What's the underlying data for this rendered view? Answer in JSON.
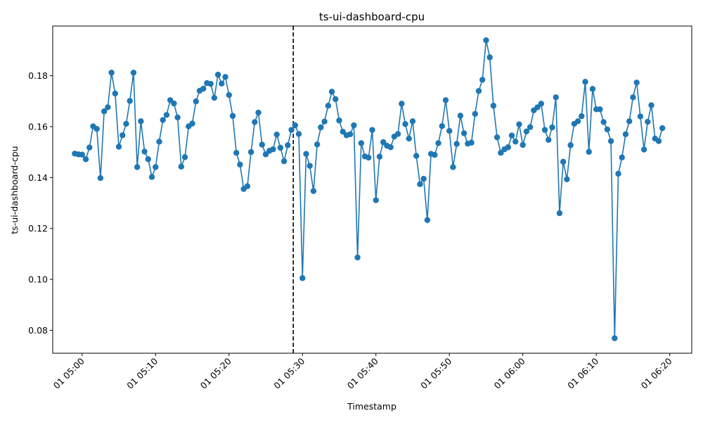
{
  "chart_data": {
    "type": "line",
    "title": "ts-ui-dashboard-cpu",
    "xlabel": "Timestamp",
    "ylabel": "ts-ui-dashboard-cpu",
    "x_start": "01 04:59",
    "x_step_seconds": 30,
    "xlim": [
      "01 04:56",
      "01 06:23"
    ],
    "ylim": [
      0.071,
      0.1995
    ],
    "x_ticks": [
      "01 05:00",
      "01 05:10",
      "01 05:20",
      "01 05:30",
      "01 05:40",
      "01 05:50",
      "01 06:00",
      "01 06:10",
      "01 06:20"
    ],
    "y_ticks": [
      "0.08",
      "0.10",
      "0.12",
      "0.14",
      "0.16",
      "0.18"
    ],
    "series": [
      {
        "color": "#1f77b4",
        "marker": "circle",
        "values": [
          0.1494,
          0.1491,
          0.149,
          0.1472,
          0.1518,
          0.1601,
          0.1591,
          0.1398,
          0.166,
          0.1676,
          0.1812,
          0.173,
          0.1521,
          0.1566,
          0.1611,
          0.1701,
          0.1812,
          0.1441,
          0.1621,
          0.1502,
          0.1472,
          0.1402,
          0.1441,
          0.1541,
          0.1626,
          0.1646,
          0.1704,
          0.1691,
          0.1636,
          0.1443,
          0.148,
          0.1601,
          0.1612,
          0.1699,
          0.1741,
          0.1749,
          0.1771,
          0.1768,
          0.1713,
          0.1804,
          0.1769,
          0.1795,
          0.1724,
          0.1642,
          0.1497,
          0.1451,
          0.1355,
          0.1366,
          0.15,
          0.1618,
          0.1655,
          0.1529,
          0.1491,
          0.1505,
          0.1511,
          0.1569,
          0.1517,
          0.1464,
          0.1527,
          0.1587,
          0.1605,
          0.1571,
          0.1005,
          0.1493,
          0.1446,
          0.1347,
          0.153,
          0.1597,
          0.162,
          0.1682,
          0.1737,
          0.1708,
          0.1624,
          0.158,
          0.1566,
          0.157,
          0.1605,
          0.1086,
          0.1535,
          0.1483,
          0.1478,
          0.1587,
          0.1311,
          0.1482,
          0.1539,
          0.1525,
          0.1519,
          0.1561,
          0.1571,
          0.169,
          0.161,
          0.1553,
          0.1621,
          0.1485,
          0.1374,
          0.1395,
          0.1233,
          0.1493,
          0.1489,
          0.1535,
          0.1602,
          0.1704,
          0.1583,
          0.1441,
          0.1532,
          0.1643,
          0.1574,
          0.1533,
          0.1537,
          0.165,
          0.174,
          0.1784,
          0.1939,
          0.1872,
          0.1682,
          0.1558,
          0.1497,
          0.1511,
          0.1519,
          0.1565,
          0.1541,
          0.1609,
          0.1528,
          0.1581,
          0.1598,
          0.1664,
          0.1676,
          0.169,
          0.1587,
          0.1548,
          0.1597,
          0.1715,
          0.126,
          0.1462,
          0.1393,
          0.1527,
          0.1611,
          0.1621,
          0.1641,
          0.1776,
          0.1501,
          0.1748,
          0.1668,
          0.1668,
          0.1618,
          0.1589,
          0.1543,
          0.0769,
          0.1415,
          0.1479,
          0.157,
          0.1621,
          0.1715,
          0.1773,
          0.164,
          0.151,
          0.1619,
          0.1684,
          0.1553,
          0.1543,
          0.1594
        ]
      }
    ],
    "vline": {
      "x": "01 05:28:45",
      "style": "dashed",
      "color": "#000000"
    },
    "grid": false,
    "legend": "none"
  }
}
